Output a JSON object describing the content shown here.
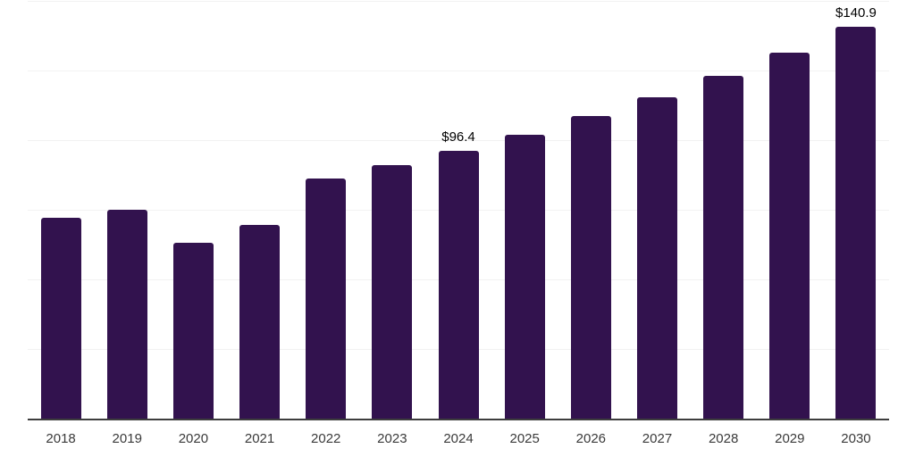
{
  "chart_data": {
    "type": "bar",
    "title": "",
    "xlabel": "",
    "ylabel": "",
    "categories": [
      "2018",
      "2019",
      "2020",
      "2021",
      "2022",
      "2023",
      "2024",
      "2025",
      "2026",
      "2027",
      "2028",
      "2029",
      "2030"
    ],
    "values": [
      72.6,
      75.3,
      63.4,
      70.0,
      86.7,
      91.5,
      96.4,
      102.3,
      109.0,
      115.8,
      123.4,
      131.6,
      140.9
    ],
    "annotations": {
      "2024": "$96.4",
      "2030": "$140.9"
    },
    "ylim": [
      0,
      150
    ],
    "gridline_values": [
      25,
      50,
      75,
      100,
      125,
      150
    ],
    "grid": "on",
    "legend": "none",
    "colors": {
      "bar": "#32124e",
      "axis_line": "#3d3d3d",
      "gridline": "#f2f2f2",
      "tick_text": "#3a3a3a",
      "annotation_text": "#000000",
      "background": "#ffffff"
    }
  }
}
